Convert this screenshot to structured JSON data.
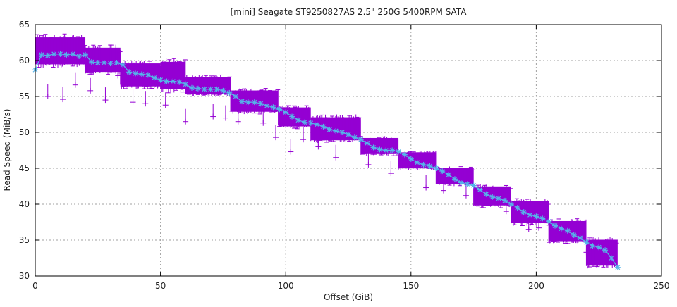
{
  "chart_data": {
    "type": "line",
    "title": "[mini] Seagate ST9250827AS 2.5\" 250G 5400RPM SATA",
    "xlabel": "Offset (GiB)",
    "ylabel": "Read Speed (MiB/s)",
    "xlim": [
      0,
      250
    ],
    "ylim": [
      30,
      65
    ],
    "xticks": [
      "0",
      "50",
      "100",
      "150",
      "200",
      "250"
    ],
    "yticks": [
      "30",
      "35",
      "40",
      "45",
      "50",
      "55",
      "60",
      "65"
    ],
    "grid": true,
    "legend": "none",
    "colors": {
      "samples": "#9400d3",
      "average": "#56b4e9"
    },
    "sample_bands": [
      {
        "x": [
          0,
          20
        ],
        "low": 59,
        "high": 63.7
      },
      {
        "x": [
          20,
          34
        ],
        "low": 58,
        "high": 62.2
      },
      {
        "x": [
          34,
          50
        ],
        "low": 56,
        "high": 60
      },
      {
        "x": [
          50,
          60
        ],
        "low": 55.5,
        "high": 60.3
      },
      {
        "x": [
          60,
          78
        ],
        "low": 55,
        "high": 58
      },
      {
        "x": [
          78,
          97
        ],
        "low": 52.5,
        "high": 56.2
      },
      {
        "x": [
          97,
          110
        ],
        "low": 50.5,
        "high": 53.8
      },
      {
        "x": [
          110,
          130
        ],
        "low": 48.5,
        "high": 52.5
      },
      {
        "x": [
          130,
          145
        ],
        "low": 46.7,
        "high": 49.5
      },
      {
        "x": [
          145,
          160
        ],
        "low": 44.7,
        "high": 47.5
      },
      {
        "x": [
          160,
          175
        ],
        "low": 42.5,
        "high": 45.3
      },
      {
        "x": [
          175,
          190
        ],
        "low": 39.5,
        "high": 42.8
      },
      {
        "x": [
          190,
          205
        ],
        "low": 37,
        "high": 40.8
      },
      {
        "x": [
          205,
          220
        ],
        "low": 34.5,
        "high": 38
      },
      {
        "x": [
          220,
          232.5
        ],
        "low": 31,
        "high": 35.5
      }
    ],
    "outliers": [
      [
        5,
        55
      ],
      [
        11,
        54.6
      ],
      [
        16,
        56.6
      ],
      [
        22,
        55.8
      ],
      [
        28,
        54.5
      ],
      [
        33,
        57.9
      ],
      [
        39,
        54.2
      ],
      [
        44,
        54
      ],
      [
        52,
        53.8
      ],
      [
        60,
        51.5
      ],
      [
        71,
        52.2
      ],
      [
        76,
        52
      ],
      [
        81,
        51.5
      ],
      [
        91,
        51.3
      ],
      [
        96,
        49.3
      ],
      [
        102,
        47.3
      ],
      [
        107,
        49
      ],
      [
        113,
        48
      ],
      [
        120,
        46.5
      ],
      [
        133,
        45.5
      ],
      [
        142,
        44.3
      ],
      [
        156,
        42.3
      ],
      [
        163,
        41.9
      ],
      [
        172,
        41.2
      ],
      [
        188,
        39
      ],
      [
        197,
        36.5
      ],
      [
        201,
        36.7
      ],
      [
        207,
        34.8
      ],
      [
        211,
        35.1
      ],
      [
        220,
        33.3
      ],
      [
        224,
        32.5
      ],
      [
        227,
        32.7
      ]
    ],
    "series": [
      {
        "x": [
          0,
          2.5,
          5,
          7.5,
          10,
          12.5,
          15,
          17.5,
          20,
          22.5,
          25,
          27.5,
          30,
          32.5,
          35,
          37.5,
          40,
          42.5,
          45,
          47.5,
          50,
          52.5,
          55,
          57.5,
          60,
          62.5,
          65,
          67.5,
          70,
          72.5,
          75,
          77.5,
          80,
          82.5,
          85,
          87.5,
          90,
          92.5,
          95,
          97.5,
          100,
          102.5,
          105,
          107.5,
          110,
          112.5,
          115,
          117.5,
          120,
          122.5,
          125,
          127.5,
          130,
          132.5,
          135,
          137.5,
          140,
          142.5,
          145,
          147.5,
          150,
          152.5,
          155,
          157.5,
          160,
          162.5,
          165,
          167.5,
          170,
          172.5,
          175,
          177.5,
          180,
          182.5,
          185,
          187.5,
          190,
          192.5,
          195,
          197.5,
          200,
          202.5,
          205,
          207.5,
          210,
          212.5,
          215,
          217.5,
          220,
          222.5,
          225,
          227.5,
          230,
          232.5
        ],
        "values": [
          58.7,
          60.8,
          60.7,
          60.9,
          60.9,
          60.8,
          60.9,
          60.6,
          60.8,
          59.8,
          59.7,
          59.7,
          59.6,
          59.7,
          59.4,
          58.4,
          58.2,
          58.1,
          58.0,
          57.6,
          57.3,
          57.1,
          57.1,
          57.0,
          56.7,
          56.2,
          56.1,
          56.0,
          56.0,
          56.0,
          55.8,
          55.5,
          55.0,
          54.3,
          54.2,
          54.2,
          54.0,
          53.7,
          53.5,
          53.2,
          52.8,
          52.2,
          51.7,
          51.4,
          51.3,
          51.1,
          50.8,
          50.4,
          50.2,
          50.0,
          49.7,
          49.3,
          49.0,
          48.5,
          47.9,
          47.6,
          47.5,
          47.5,
          47.3,
          46.9,
          46.3,
          45.8,
          45.5,
          45.3,
          45.0,
          44.6,
          44.1,
          43.5,
          43.0,
          42.8,
          42.6,
          42.0,
          41.4,
          41.0,
          40.8,
          40.5,
          40.0,
          39.5,
          38.9,
          38.5,
          38.3,
          38.0,
          37.6,
          37.0,
          36.6,
          36.3,
          35.7,
          35.3,
          34.7,
          34.2,
          34.0,
          33.6,
          32.5,
          31.2
        ]
      }
    ]
  }
}
